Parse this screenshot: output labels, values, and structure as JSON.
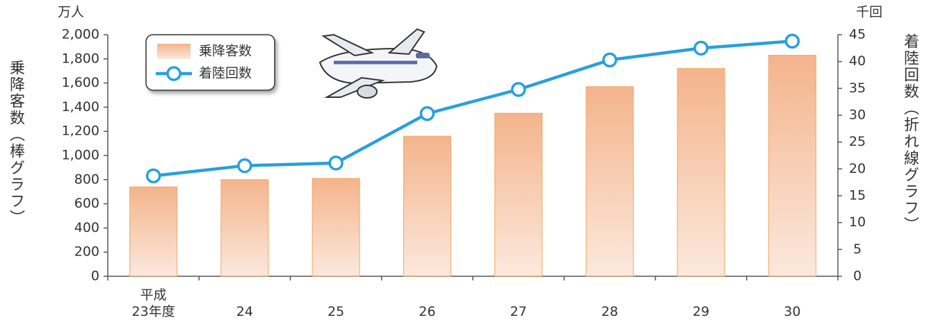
{
  "chart_data": {
    "type": "bar",
    "categories": [
      "平成\n23年度",
      "24",
      "25",
      "26",
      "27",
      "28",
      "29",
      "30"
    ],
    "y_unit": "万人",
    "y2_unit": "千回",
    "y_label": "乗降客数（棒グラフ）",
    "y2_label": "着陸回数（折れ線グラフ）",
    "series": [
      {
        "name": "乗降客数",
        "type": "bar",
        "color": "#f4b48c",
        "values": [
          740,
          800,
          810,
          1160,
          1350,
          1570,
          1720,
          1830
        ]
      },
      {
        "name": "着陸回数",
        "type": "line",
        "axis": "y2",
        "color": "#27a0dc",
        "values": [
          18.7,
          20.6,
          21.1,
          30.3,
          34.8,
          40.3,
          42.5,
          43.8
        ]
      }
    ],
    "ylim": [
      0,
      2000
    ],
    "yticks": [
      0,
      200,
      400,
      600,
      800,
      {
        "value": 1000,
        "label": "1,000"
      },
      {
        "value": 1200,
        "label": "1,200"
      },
      {
        "value": 1400,
        "label": "1,400"
      },
      {
        "value": 1600,
        "label": "1,600"
      },
      {
        "value": 1800,
        "label": "1,800"
      },
      {
        "value": 2000,
        "label": "2,000"
      }
    ],
    "y2lim": [
      0,
      45
    ],
    "y2ticks": [
      0,
      5,
      10,
      15,
      20,
      25,
      30,
      35,
      40,
      45
    ],
    "legend": "upper-left"
  }
}
